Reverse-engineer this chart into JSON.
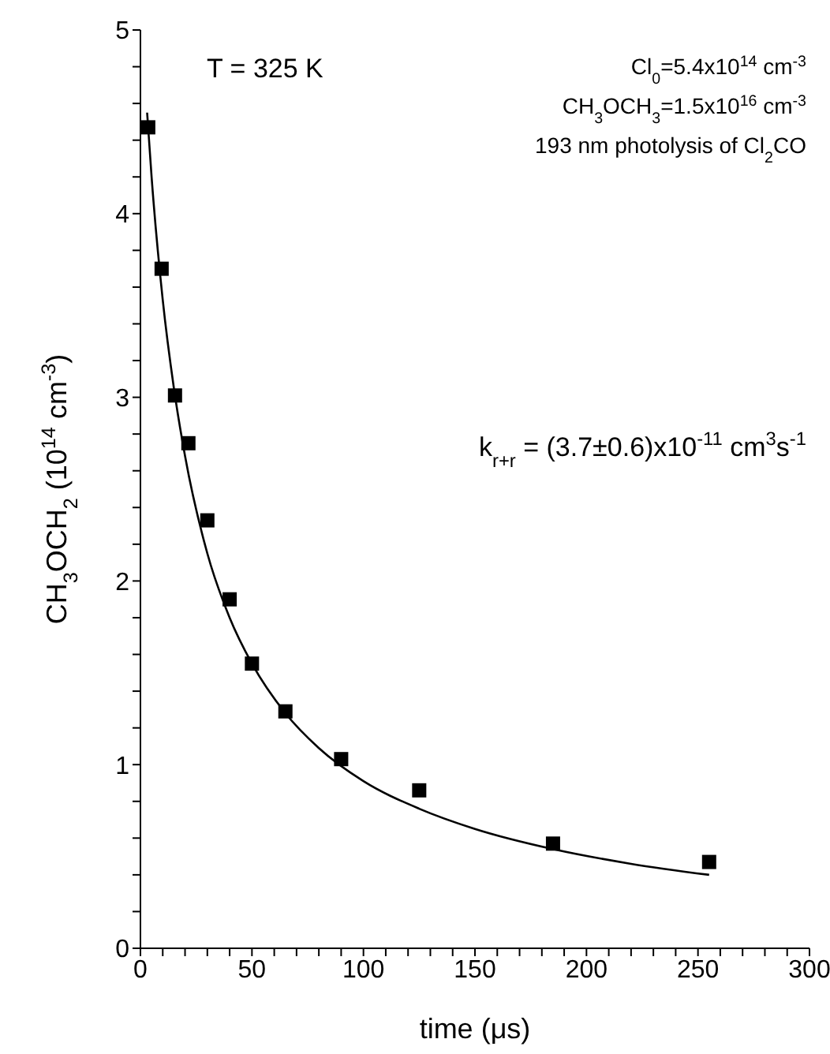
{
  "chart_data": {
    "type": "scatter",
    "xlabel": "time (μs)",
    "ylabel": "CH$_{3}$OCH$_{2}$ (10$^{14}$ cm$^{-3}$)",
    "xlim": [
      0,
      300
    ],
    "ylim": [
      0,
      5
    ],
    "xticks": [
      0,
      {
        "value": 10,
        "label": null
      },
      {
        "value": 20,
        "label": null
      },
      {
        "value": 30,
        "label": null
      },
      {
        "value": 40,
        "label": null
      },
      50,
      {
        "value": 60,
        "label": null
      },
      {
        "value": 70,
        "label": null
      },
      {
        "value": 80,
        "label": null
      },
      {
        "value": 90,
        "label": null
      },
      100,
      {
        "value": 110,
        "label": null
      },
      {
        "value": 120,
        "label": null
      },
      {
        "value": 130,
        "label": null
      },
      {
        "value": 140,
        "label": null
      },
      150,
      {
        "value": 160,
        "label": null
      },
      {
        "value": 170,
        "label": null
      },
      {
        "value": 180,
        "label": null
      },
      {
        "value": 190,
        "label": null
      },
      200,
      {
        "value": 210,
        "label": null
      },
      {
        "value": 220,
        "label": null
      },
      {
        "value": 230,
        "label": null
      },
      {
        "value": 240,
        "label": null
      },
      250,
      {
        "value": 260,
        "label": null
      },
      {
        "value": 270,
        "label": null
      },
      {
        "value": 280,
        "label": null
      },
      {
        "value": 290,
        "label": null
      },
      300
    ],
    "yticks": [
      0,
      {
        "value": 0.2,
        "label": null
      },
      {
        "value": 0.4,
        "label": null
      },
      {
        "value": 0.6,
        "label": null
      },
      {
        "value": 0.8,
        "label": null
      },
      1,
      {
        "value": 1.2,
        "label": null
      },
      {
        "value": 1.4,
        "label": null
      },
      {
        "value": 1.6,
        "label": null
      },
      {
        "value": 1.8,
        "label": null
      },
      2,
      {
        "value": 2.2,
        "label": null
      },
      {
        "value": 2.4,
        "label": null
      },
      {
        "value": 2.6,
        "label": null
      },
      {
        "value": 2.8,
        "label": null
      },
      3,
      {
        "value": 3.2,
        "label": null
      },
      {
        "value": 3.4,
        "label": null
      },
      {
        "value": 3.6,
        "label": null
      },
      {
        "value": 3.8,
        "label": null
      },
      4,
      {
        "value": 4.2,
        "label": null
      },
      {
        "value": 4.4,
        "label": null
      },
      {
        "value": 4.6,
        "label": null
      },
      {
        "value": 4.8,
        "label": null
      },
      5
    ],
    "annotations": [
      "T = 325 K",
      "Cl$_{0}$=5.4x10$^{14}$ cm$^{-3}$",
      "CH$_{3}$OCH$_{3}$=1.5x10$^{16}$ cm$^{-3}$",
      "193 nm photolysis of Cl$_{2}$CO",
      "k$_{r+r}$ = (3.7±0.6)x10$^{-11}$ cm$^{3}$s$^{-1}$"
    ],
    "series": [
      {
        "color": "#000000",
        "marker": "square",
        "x": [
          3.5,
          9.5,
          15.5,
          21.5,
          30,
          40,
          50,
          65,
          90,
          125,
          185,
          255
        ],
        "values": [
          4.47,
          3.7,
          3.01,
          2.75,
          2.33,
          1.9,
          1.55,
          1.29,
          1.03,
          0.86,
          0.57,
          0.47
        ]
      },
      {
        "type": "line",
        "color": "#000000",
        "marker": "none",
        "line_style": "solid",
        "x": [
          3,
          5,
          10,
          15,
          20,
          30,
          40,
          50,
          65,
          80,
          100,
          125,
          150,
          185,
          220,
          255
        ],
        "values": [
          4.55,
          4.2,
          3.53,
          3.05,
          2.68,
          2.15,
          1.8,
          1.55,
          1.28,
          1.09,
          0.91,
          0.76,
          0.65,
          0.54,
          0.46,
          0.4
        ]
      }
    ]
  }
}
